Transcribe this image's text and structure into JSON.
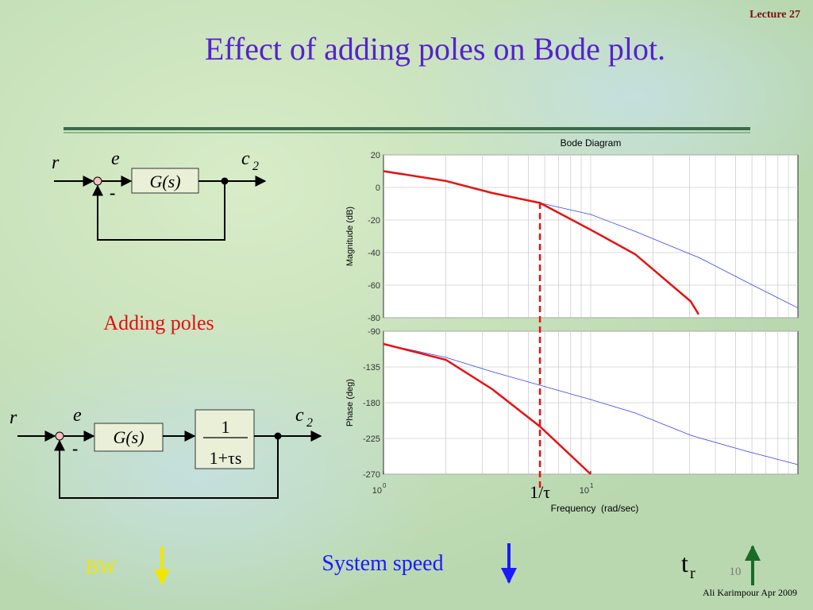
{
  "slide": {
    "lecture": "Lecture 27",
    "title": "Effect of adding poles on Bode plot.",
    "adding_poles": "Adding poles",
    "bw": "BW",
    "system_speed": "System speed",
    "tr": "t",
    "tr_sub": "r",
    "page": "10",
    "footer": "Ali Karimpour  Apr 2009"
  },
  "diagram1": {
    "input": "r",
    "error": "e",
    "output": "c",
    "output_sub": "2",
    "block": "G(s)",
    "sign": "-"
  },
  "diagram2": {
    "input": "r",
    "error": "e",
    "output": "c",
    "output_sub": "2",
    "block": "G(s)",
    "sign": "-",
    "pole_num": "1",
    "pole_den": "1+τs"
  },
  "chart_data": [
    {
      "type": "line",
      "title": "Bode Diagram",
      "ylabel": "Magnitude (dB)",
      "log_x": true,
      "grid": true,
      "xlim": [
        1,
        100
      ],
      "x_grid": [
        2,
        3,
        4,
        5,
        6,
        7,
        8,
        9,
        10,
        20,
        30,
        40,
        50,
        60,
        70,
        80,
        90
      ],
      "ylim": [
        -80,
        20
      ],
      "yticks": [
        20,
        0,
        -20,
        -40,
        -60,
        -80
      ],
      "x": [
        1,
        2,
        3.35,
        5.69,
        10,
        16.4,
        30.4,
        33.2,
        56.3,
        100
      ],
      "series": [
        {
          "color": "#3344ff",
          "width": 0.8,
          "values": [
            10,
            4,
            -3.4,
            -9.5,
            -16.6,
            -27,
            -41,
            -43,
            -58,
            -74
          ]
        },
        {
          "color": "#e81010",
          "width": 2.5,
          "values": [
            10,
            4,
            -3.4,
            -9.5,
            -26,
            -41,
            -70,
            -78,
            null,
            null
          ]
        }
      ]
    },
    {
      "type": "line",
      "ylabel": "Phase (deg)",
      "xlabel": "Frequency  (rad/sec)",
      "log_x": true,
      "grid": true,
      "xlim": [
        1,
        100
      ],
      "x_grid": [
        2,
        3,
        4,
        5,
        6,
        7,
        8,
        9,
        10,
        20,
        30,
        40,
        50,
        60,
        70,
        80,
        90
      ],
      "xticks": [
        {
          "value": 1,
          "label": "10",
          "exponent": "0"
        },
        {
          "value": 10,
          "label": "10",
          "exponent": "1"
        }
      ],
      "ylim": [
        -270,
        -90
      ],
      "yticks": [
        -90,
        -135,
        -180,
        -225,
        -270
      ],
      "x": [
        1,
        2,
        3.35,
        5.69,
        10,
        16.4,
        30.4,
        33.2,
        56.3,
        100
      ],
      "series": [
        {
          "color": "#3344ff",
          "width": 0.8,
          "values": [
            -106,
            -123,
            -141,
            -158,
            -176,
            -193,
            -221,
            -224,
            -241,
            -258
          ]
        },
        {
          "color": "#e81010",
          "width": 2.5,
          "values": [
            -106,
            -126,
            -163,
            -210,
            -270,
            null,
            null,
            null,
            null,
            null
          ]
        }
      ],
      "marker": {
        "x": 5.69,
        "label": "1/τ",
        "color": "#e81010"
      }
    }
  ]
}
